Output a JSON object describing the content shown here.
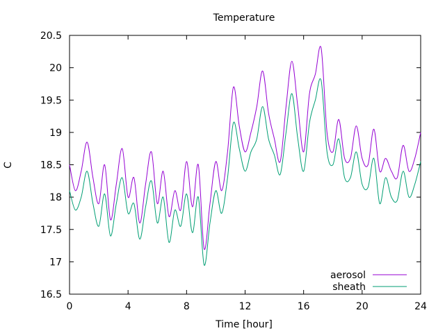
{
  "chart_data": {
    "type": "line",
    "title": "Temperature",
    "xlabel": "Time [hour]",
    "ylabel": "C",
    "xlim": [
      0,
      24
    ],
    "ylim": [
      16.5,
      20.5
    ],
    "xticks": [
      0,
      4,
      8,
      12,
      16,
      20,
      24
    ],
    "xtick_labels": [
      "0",
      "4",
      "8",
      "12",
      "16",
      "20",
      "24"
    ],
    "yticks": [
      16.5,
      17,
      17.5,
      18,
      18.5,
      19,
      19.5,
      20,
      20.5
    ],
    "ytick_labels": [
      "16.5",
      "17",
      "17.5",
      "18",
      "18.5",
      "19",
      "19.5",
      "20",
      "20.5"
    ],
    "grid": false,
    "legend_position": "bottom-right",
    "series": [
      {
        "name": "aerosol",
        "color": "#9400d3",
        "x": [
          0,
          0.4,
          0.8,
          1.2,
          1.6,
          2.0,
          2.4,
          2.8,
          3.2,
          3.6,
          4.0,
          4.4,
          4.8,
          5.2,
          5.6,
          6.0,
          6.4,
          6.8,
          7.2,
          7.6,
          8.0,
          8.4,
          8.8,
          9.2,
          9.6,
          10.0,
          10.4,
          10.8,
          11.2,
          11.6,
          12.0,
          12.4,
          12.8,
          13.2,
          13.6,
          14.0,
          14.4,
          14.8,
          15.2,
          15.6,
          16.0,
          16.4,
          16.8,
          17.2,
          17.6,
          18.0,
          18.4,
          18.8,
          19.2,
          19.6,
          20.0,
          20.4,
          20.8,
          21.2,
          21.6,
          22.0,
          22.4,
          22.8,
          23.2,
          23.6,
          24.0
        ],
        "values": [
          18.5,
          18.1,
          18.4,
          18.85,
          18.3,
          17.9,
          18.5,
          17.65,
          18.2,
          18.75,
          18.0,
          18.3,
          17.6,
          18.2,
          18.7,
          17.9,
          18.4,
          17.7,
          18.1,
          17.8,
          18.55,
          17.85,
          18.5,
          17.2,
          17.9,
          18.55,
          18.1,
          18.7,
          19.7,
          19.1,
          18.7,
          19.0,
          19.4,
          19.95,
          19.3,
          18.9,
          18.55,
          19.4,
          20.1,
          19.4,
          18.7,
          19.6,
          19.9,
          20.3,
          19.0,
          18.7,
          19.2,
          18.6,
          18.6,
          19.1,
          18.6,
          18.5,
          19.05,
          18.4,
          18.6,
          18.4,
          18.3,
          18.8,
          18.4,
          18.6,
          19.0
        ]
      },
      {
        "name": "sheath",
        "color": "#009e73",
        "x": [
          0,
          0.4,
          0.8,
          1.2,
          1.6,
          2.0,
          2.4,
          2.8,
          3.2,
          3.6,
          4.0,
          4.4,
          4.8,
          5.2,
          5.6,
          6.0,
          6.4,
          6.8,
          7.2,
          7.6,
          8.0,
          8.4,
          8.8,
          9.2,
          9.6,
          10.0,
          10.4,
          10.8,
          11.2,
          11.6,
          12.0,
          12.4,
          12.8,
          13.2,
          13.6,
          14.0,
          14.4,
          14.8,
          15.2,
          15.6,
          16.0,
          16.4,
          16.8,
          17.2,
          17.6,
          18.0,
          18.4,
          18.8,
          19.2,
          19.6,
          20.0,
          20.4,
          20.8,
          21.2,
          21.6,
          22.0,
          22.4,
          22.8,
          23.2,
          23.6,
          24.0
        ],
        "values": [
          18.1,
          17.8,
          18.0,
          18.4,
          17.9,
          17.55,
          18.05,
          17.4,
          17.9,
          18.3,
          17.75,
          17.9,
          17.35,
          17.85,
          18.25,
          17.6,
          18.0,
          17.3,
          17.8,
          17.55,
          18.05,
          17.45,
          18.0,
          16.95,
          17.6,
          18.1,
          17.75,
          18.3,
          19.15,
          18.75,
          18.4,
          18.7,
          18.9,
          19.4,
          18.9,
          18.65,
          18.35,
          19.0,
          19.6,
          18.9,
          18.4,
          19.15,
          19.5,
          19.8,
          18.7,
          18.5,
          18.9,
          18.3,
          18.3,
          18.7,
          18.2,
          18.15,
          18.6,
          17.9,
          18.3,
          18.0,
          17.95,
          18.4,
          18.0,
          18.2,
          18.55
        ]
      }
    ]
  }
}
